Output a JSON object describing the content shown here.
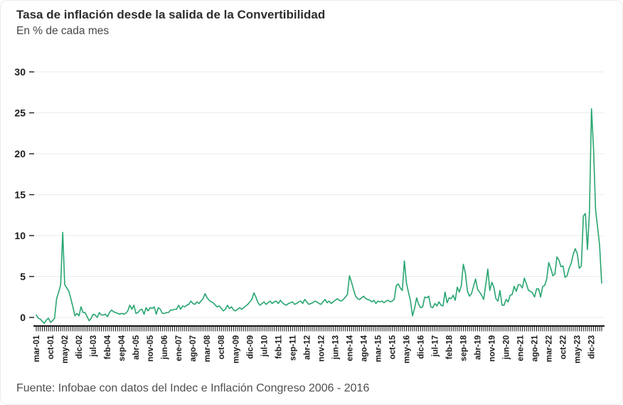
{
  "header": {
    "title": "Tasa de inflación desde la salida de la Convertibilidad",
    "subtitle": "En % de cada mes"
  },
  "footer": {
    "source": "Fuente: Infobae con datos del Indec e Inflación Congreso 2006 - 2016"
  },
  "chart_data": {
    "type": "line",
    "title": "Tasa de inflación desde la salida de la Convertibilidad",
    "subtitle": "En % de cada mes",
    "unit": "% mensual",
    "line_color": "#27a570",
    "grid": "horizontal",
    "grid_color": "#eaeaea",
    "axis_color": "#161616",
    "ylim": [
      -1,
      31
    ],
    "yticks": [
      0,
      5,
      10,
      15,
      20,
      25,
      30
    ],
    "x_first_month": "mar-01",
    "x_label_every_n_months": 7,
    "x_tick_labels": [
      "mar-01",
      "oct-01",
      "may-02",
      "dic-02",
      "jul-03",
      "feb-04",
      "sep-04",
      "abr-05",
      "nov-05",
      "jun-06",
      "ene-07",
      "ago-07",
      "mar-08",
      "oct-08",
      "may-09",
      "dic-09",
      "jul-10",
      "feb-11",
      "sep-11",
      "abr-12",
      "nov-12",
      "jun-13",
      "ene-14",
      "ago-14",
      "mar-15",
      "oct-15",
      "may-16",
      "dic-16",
      "jul-17",
      "feb-18",
      "sep-18",
      "abr-19",
      "nov-19",
      "jun-20",
      "ene-21",
      "ago-21",
      "mar-22",
      "oct-22",
      "may-23",
      "dic-23"
    ],
    "values": [
      0.3,
      -0.1,
      -0.2,
      -0.5,
      -0.7,
      -0.3,
      -0.1,
      -0.6,
      -0.4,
      -0.1,
      2.3,
      3.1,
      4.0,
      10.4,
      4.0,
      3.6,
      3.2,
      2.3,
      1.3,
      0.2,
      0.5,
      0.2,
      1.3,
      0.6,
      0.6,
      0.1,
      -0.4,
      -0.1,
      0.4,
      0.3,
      0.0,
      0.6,
      0.3,
      0.3,
      0.4,
      0.1,
      0.6,
      0.9,
      0.7,
      0.6,
      0.5,
      0.4,
      0.5,
      0.4,
      0.5,
      0.8,
      1.5,
      1.0,
      1.5,
      0.5,
      0.6,
      0.9,
      1.0,
      0.4,
      1.2,
      0.8,
      1.2,
      1.1,
      1.3,
      0.4,
      1.2,
      1.0,
      0.5,
      0.5,
      0.6,
      0.6,
      0.9,
      0.9,
      1.0,
      1.0,
      1.5,
      1.0,
      1.4,
      1.3,
      1.5,
      1.6,
      2.0,
      1.7,
      1.6,
      1.9,
      1.7,
      2.0,
      2.3,
      2.9,
      2.4,
      2.1,
      1.9,
      1.8,
      1.5,
      1.3,
      1.4,
      1.1,
      0.8,
      1.0,
      1.5,
      1.1,
      1.3,
      0.9,
      0.8,
      1.0,
      1.2,
      1.0,
      1.2,
      1.4,
      1.6,
      1.9,
      2.2,
      3.0,
      2.5,
      1.8,
      1.5,
      1.7,
      1.9,
      1.6,
      1.8,
      2.0,
      1.7,
      1.9,
      2.0,
      1.7,
      2.1,
      1.8,
      1.6,
      1.5,
      1.7,
      1.8,
      1.9,
      1.6,
      1.7,
      1.9,
      2.0,
      1.7,
      2.2,
      1.9,
      1.6,
      1.7,
      1.8,
      2.0,
      1.9,
      1.7,
      1.6,
      1.9,
      2.2,
      1.8,
      2.0,
      1.7,
      1.9,
      2.1,
      2.3,
      2.1,
      2.0,
      2.2,
      2.5,
      2.8,
      5.1,
      4.3,
      3.4,
      2.6,
      2.3,
      2.2,
      2.4,
      2.6,
      2.3,
      2.2,
      2.1,
      1.9,
      2.1,
      1.7,
      2.0,
      1.9,
      2.0,
      1.8,
      2.0,
      2.1,
      1.9,
      2.0,
      2.2,
      3.9,
      4.1,
      3.6,
      3.3,
      6.9,
      4.2,
      3.1,
      2.0,
      0.2,
      1.1,
      2.4,
      1.6,
      1.2,
      1.3,
      2.5,
      2.4,
      2.6,
      1.3,
      1.2,
      1.7,
      1.4,
      1.9,
      1.5,
      1.4,
      3.1,
      1.8,
      2.4,
      2.3,
      2.7,
      2.1,
      3.7,
      3.1,
      3.9,
      6.5,
      5.4,
      3.2,
      2.6,
      2.9,
      3.8,
      4.7,
      3.4,
      3.1,
      2.7,
      2.2,
      4.0,
      5.9,
      3.3,
      4.3,
      3.7,
      2.3,
      2.0,
      3.3,
      1.5,
      1.5,
      2.2,
      1.9,
      2.7,
      2.8,
      3.8,
      3.2,
      4.0,
      4.0,
      3.6,
      4.8,
      4.1,
      3.3,
      3.2,
      3.0,
      2.5,
      3.5,
      3.5,
      2.5,
      3.8,
      3.9,
      4.7,
      6.7,
      6.0,
      5.1,
      5.3,
      7.4,
      7.0,
      6.2,
      6.3,
      4.9,
      5.1,
      6.0,
      6.6,
      7.7,
      8.4,
      7.8,
      6.0,
      6.3,
      12.4,
      12.7,
      8.3,
      12.8,
      25.5,
      20.6,
      13.2,
      11.0,
      8.8,
      4.2
    ]
  }
}
